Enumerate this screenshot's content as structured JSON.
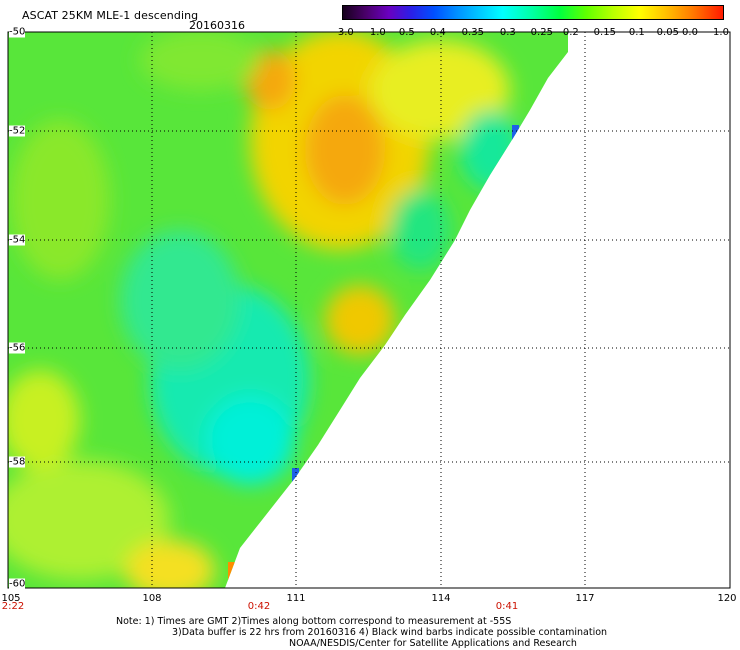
{
  "title": "ASCAT 25KM MLE-1 descending",
  "date": "20160316",
  "colorbar": {
    "labels": [
      "-3.0",
      "-1.0",
      "-0.5",
      "-0.4",
      "-0.35",
      "-0.3",
      "-0.25",
      "-0.2",
      "-0.15",
      "-0.1",
      "-0.05",
      "0.0",
      "1.0"
    ]
  },
  "map": {
    "lat_labels": [
      "-50",
      "-52",
      "-54",
      "-56",
      "-58",
      "-60"
    ],
    "lon_labels": [
      "105",
      "108",
      "111",
      "114",
      "117",
      "120"
    ],
    "time_labels": [
      "2:22",
      "0:42",
      "0:41"
    ]
  },
  "notes": {
    "line1": "Note: 1) Times are GMT 2)Times along bottom correspond to measurement at -55S",
    "line2": "3)Data buffer is 22 hrs from 20160316 4) Black wind barbs indicate possible contamination",
    "line3": "NOAA/NESDIS/Center for Satellite Applications and Research"
  }
}
